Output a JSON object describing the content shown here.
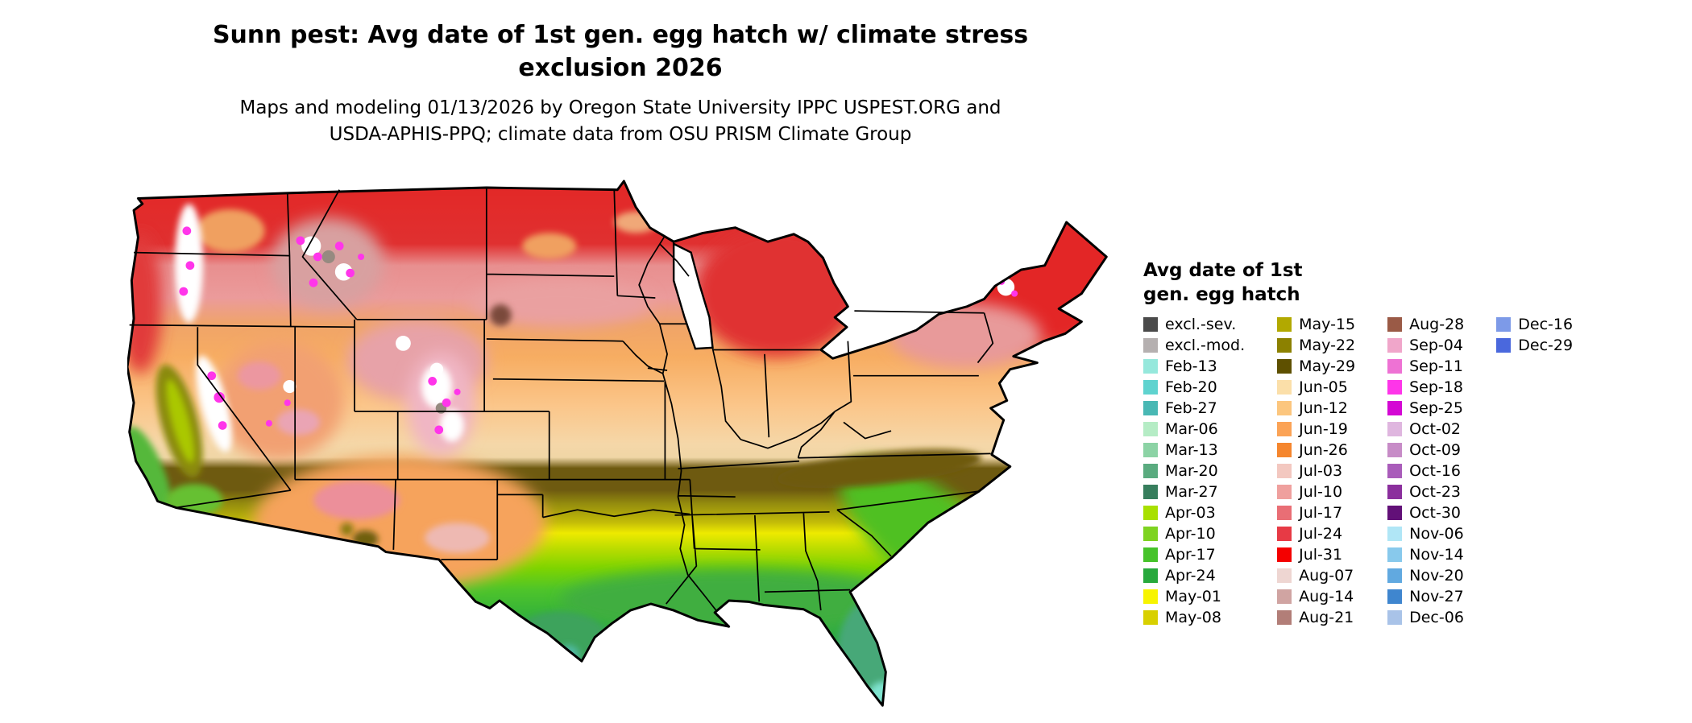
{
  "header": {
    "title_line1": "Sunn pest: Avg date of 1st gen. egg hatch w/ climate stress",
    "title_line2": "exclusion 2026",
    "subtitle_line1": "Maps and modeling 01/13/2026 by Oregon State University IPPC USPEST.ORG and",
    "subtitle_line2": "USDA-APHIS-PPQ; climate data from OSU PRISM Climate Group"
  },
  "legend": {
    "title_line1": "Avg date of 1st",
    "title_line2": "gen. egg hatch",
    "columns": [
      {
        "entries": [
          {
            "label": "excl.-sev.",
            "color": "#4a4a4a"
          },
          {
            "label": "excl.-mod.",
            "color": "#b5b0b0"
          },
          {
            "label": "Feb-13",
            "color": "#96e8dc"
          },
          {
            "label": "Feb-20",
            "color": "#5fd3cf"
          },
          {
            "label": "Feb-27",
            "color": "#49b8b4"
          },
          {
            "label": "Mar-06",
            "color": "#b5ecc5"
          },
          {
            "label": "Mar-13",
            "color": "#8cd3a5"
          },
          {
            "label": "Mar-20",
            "color": "#5aab7f"
          },
          {
            "label": "Mar-27",
            "color": "#377e5d"
          },
          {
            "label": "Apr-03",
            "color": "#a8e000"
          },
          {
            "label": "Apr-10",
            "color": "#7ed321"
          },
          {
            "label": "Apr-17",
            "color": "#46c32a"
          },
          {
            "label": "Apr-24",
            "color": "#27a93c"
          },
          {
            "label": "May-01",
            "color": "#f7f400"
          },
          {
            "label": "May-08",
            "color": "#d8d000"
          }
        ]
      },
      {
        "entries": [
          {
            "label": "May-15",
            "color": "#b2a900"
          },
          {
            "label": "May-22",
            "color": "#8c8100"
          },
          {
            "label": "May-29",
            "color": "#5e5000"
          },
          {
            "label": "Jun-05",
            "color": "#fbdfa9"
          },
          {
            "label": "Jun-12",
            "color": "#fcc67e"
          },
          {
            "label": "Jun-19",
            "color": "#fba356"
          },
          {
            "label": "Jun-26",
            "color": "#f5862e"
          },
          {
            "label": "Jul-03",
            "color": "#f3c8c0"
          },
          {
            "label": "Jul-10",
            "color": "#efa09e"
          },
          {
            "label": "Jul-17",
            "color": "#e96e75"
          },
          {
            "label": "Jul-24",
            "color": "#e73a45"
          },
          {
            "label": "Jul-31",
            "color": "#f40000"
          },
          {
            "label": "Aug-07",
            "color": "#eed6d2"
          },
          {
            "label": "Aug-14",
            "color": "#d0a4a2"
          },
          {
            "label": "Aug-21",
            "color": "#b27e78"
          }
        ]
      },
      {
        "entries": [
          {
            "label": "Aug-28",
            "color": "#9a5a46"
          },
          {
            "label": "Sep-04",
            "color": "#f0a6ca"
          },
          {
            "label": "Sep-11",
            "color": "#ee72d4"
          },
          {
            "label": "Sep-18",
            "color": "#fe35e9"
          },
          {
            "label": "Sep-25",
            "color": "#d408d4"
          },
          {
            "label": "Oct-02",
            "color": "#dfb6df"
          },
          {
            "label": "Oct-09",
            "color": "#c78cc7"
          },
          {
            "label": "Oct-16",
            "color": "#a95cba"
          },
          {
            "label": "Oct-23",
            "color": "#8b2f9d"
          },
          {
            "label": "Oct-30",
            "color": "#621078"
          },
          {
            "label": "Nov-06",
            "color": "#b0e6f6"
          },
          {
            "label": "Nov-14",
            "color": "#88c9ec"
          },
          {
            "label": "Nov-20",
            "color": "#61a9e0"
          },
          {
            "label": "Nov-27",
            "color": "#3f86cf"
          },
          {
            "label": "Dec-06",
            "color": "#a9c3e8"
          }
        ]
      },
      {
        "entries": [
          {
            "label": "Dec-16",
            "color": "#7d9ae8"
          },
          {
            "label": "Dec-29",
            "color": "#4a68dd"
          }
        ]
      }
    ]
  }
}
